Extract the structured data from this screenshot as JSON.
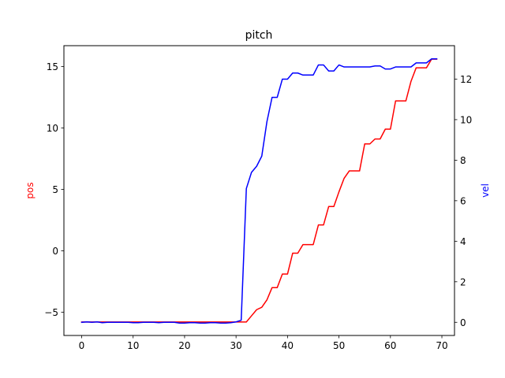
{
  "chart_data": {
    "type": "line",
    "title": "pitch",
    "xlabel": "",
    "xlim": [
      -3.45,
      72.45
    ],
    "ylim_left": [
      -6.9,
      16.7
    ],
    "ylim_right": [
      -0.65,
      13.65
    ],
    "xticks": [
      0,
      10,
      20,
      30,
      40,
      50,
      60,
      70
    ],
    "yticks_left": [
      -5,
      0,
      5,
      10,
      15
    ],
    "yticks_right": [
      0,
      2,
      4,
      6,
      8,
      10,
      12
    ],
    "grid": false,
    "series": [
      {
        "name": "pos",
        "axis": "left",
        "color": "#ff0000",
        "x": [
          0,
          1,
          2,
          3,
          4,
          5,
          6,
          7,
          8,
          9,
          10,
          11,
          12,
          13,
          14,
          15,
          16,
          17,
          18,
          19,
          20,
          21,
          22,
          23,
          24,
          25,
          26,
          27,
          28,
          29,
          30,
          31,
          32,
          33,
          34,
          35,
          36,
          37,
          38,
          39,
          40,
          41,
          42,
          43,
          44,
          45,
          46,
          47,
          48,
          49,
          50,
          51,
          52,
          53,
          54,
          55,
          56,
          57,
          58,
          59,
          60,
          61,
          62,
          63,
          64,
          65,
          66,
          67,
          68,
          69
        ],
        "y": [
          -5.8,
          -5.8,
          -5.8,
          -5.8,
          -5.8,
          -5.8,
          -5.8,
          -5.8,
          -5.8,
          -5.8,
          -5.8,
          -5.8,
          -5.8,
          -5.8,
          -5.8,
          -5.8,
          -5.8,
          -5.8,
          -5.8,
          -5.8,
          -5.8,
          -5.8,
          -5.8,
          -5.8,
          -5.8,
          -5.8,
          -5.8,
          -5.8,
          -5.8,
          -5.8,
          -5.8,
          -5.8,
          -5.8,
          -5.3,
          -4.8,
          -4.6,
          -4.0,
          -3.0,
          -3.0,
          -1.9,
          -1.9,
          -0.2,
          -0.2,
          0.5,
          0.5,
          0.5,
          2.1,
          2.1,
          3.6,
          3.6,
          4.8,
          5.9,
          6.5,
          6.5,
          6.5,
          8.7,
          8.7,
          9.1,
          9.1,
          9.9,
          9.9,
          12.2,
          12.2,
          12.2,
          13.8,
          14.9,
          14.9,
          14.9,
          15.6,
          15.6
        ]
      },
      {
        "name": "vel",
        "axis": "right",
        "color": "#0000ff",
        "x": [
          0,
          1,
          2,
          3,
          4,
          5,
          6,
          7,
          8,
          9,
          10,
          11,
          12,
          13,
          14,
          15,
          16,
          17,
          18,
          19,
          20,
          21,
          22,
          23,
          24,
          25,
          26,
          27,
          28,
          29,
          30,
          31,
          32,
          33,
          34,
          35,
          36,
          37,
          38,
          39,
          40,
          41,
          42,
          43,
          44,
          45,
          46,
          47,
          48,
          49,
          50,
          51,
          52,
          53,
          54,
          55,
          56,
          57,
          58,
          59,
          60,
          61,
          62,
          63,
          64,
          65,
          66,
          67,
          68,
          69
        ],
        "y": [
          0.0,
          0.02,
          0.0,
          0.02,
          -0.02,
          0.0,
          0.0,
          0.0,
          0.0,
          0.0,
          -0.02,
          -0.02,
          0.0,
          0.0,
          0.0,
          -0.02,
          0.0,
          0.0,
          0.0,
          -0.04,
          -0.04,
          -0.02,
          -0.02,
          -0.04,
          -0.04,
          -0.02,
          -0.02,
          -0.04,
          -0.04,
          -0.02,
          0.02,
          0.1,
          6.6,
          7.4,
          7.7,
          8.2,
          9.9,
          11.1,
          11.1,
          12.0,
          12.0,
          12.3,
          12.3,
          12.2,
          12.2,
          12.2,
          12.7,
          12.7,
          12.4,
          12.4,
          12.7,
          12.6,
          12.6,
          12.6,
          12.6,
          12.6,
          12.6,
          12.65,
          12.65,
          12.5,
          12.5,
          12.6,
          12.6,
          12.6,
          12.6,
          12.8,
          12.8,
          12.8,
          13.0,
          13.0
        ]
      }
    ]
  },
  "labels": {
    "left_axis": "pos",
    "right_axis": "vel"
  },
  "colors": {
    "pos": "#ff0000",
    "vel": "#0000ff",
    "axes": "#000000"
  }
}
